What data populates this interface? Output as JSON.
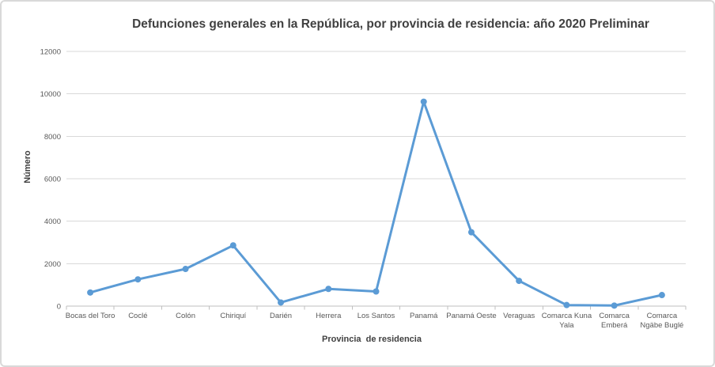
{
  "chart_data": {
    "type": "line",
    "title": "Defunciones generales en la República, por provincia de residencia: año 2020 Preliminar",
    "xlabel": "Provincia  de residencia",
    "ylabel": "Número",
    "categories": [
      "Bocas del Toro",
      "Coclé",
      "Colón",
      "Chiriquí",
      "Darién",
      "Herrera",
      "Los Santos",
      "Panamá",
      "Panamá Oeste",
      "Veraguas",
      "Comarca Kuna Yala",
      "Comarca Emberá",
      "Comarca Ngäbe Buglé"
    ],
    "category_display": [
      [
        "Bocas del Toro"
      ],
      [
        "Coclé"
      ],
      [
        "Colón"
      ],
      [
        "Chiriquí"
      ],
      [
        "Darién"
      ],
      [
        "Herrera"
      ],
      [
        "Los Santos"
      ],
      [
        "Panamá"
      ],
      [
        "Panamá Oeste"
      ],
      [
        "Veraguas"
      ],
      [
        "Comarca Kuna",
        "Yala"
      ],
      [
        "Comarca",
        "Emberá"
      ],
      [
        "Comarca",
        "Ngäbe Buglé"
      ]
    ],
    "values": [
      640,
      1260,
      1750,
      2860,
      170,
      810,
      690,
      9630,
      3480,
      1190,
      50,
      25,
      520
    ],
    "ylim": [
      0,
      12000
    ],
    "yticks": [
      0,
      2000,
      4000,
      6000,
      8000,
      10000,
      12000
    ],
    "grid": true,
    "legend": "none",
    "marker": "circle",
    "colors": {
      "line": "#5B9BD5",
      "marker": "#5B9BD5",
      "gridline": "#D9D9D9",
      "axis_line": "#BFBFBF",
      "tick_label": "#595959",
      "title_text": "#404040"
    }
  }
}
